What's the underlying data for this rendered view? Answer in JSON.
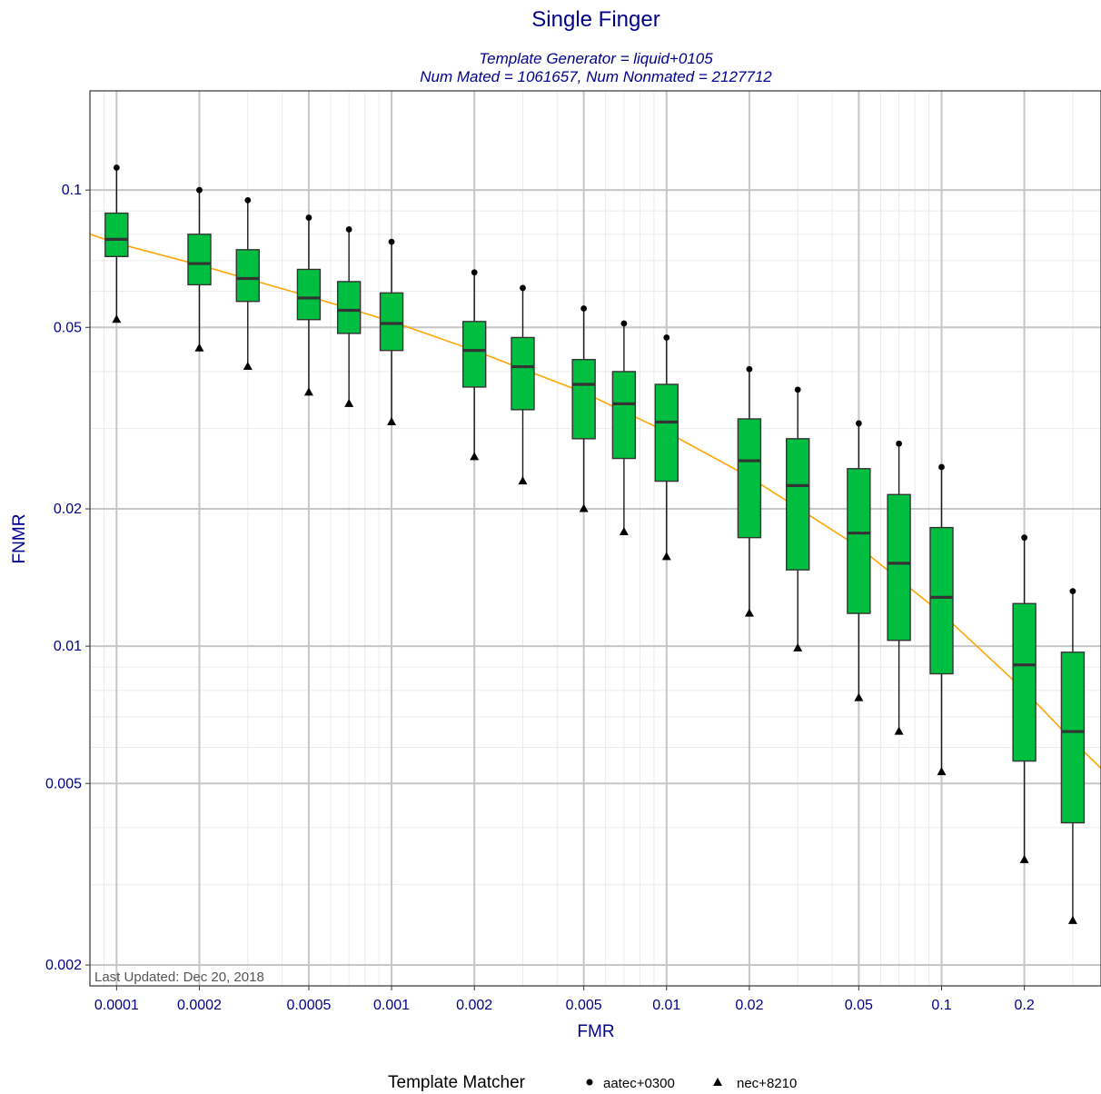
{
  "chart_data": {
    "type": "boxplot",
    "title": "Single Finger",
    "subtitle_lines": [
      "Template Generator = liquid+0105",
      "Num Mated = 1061657, Num Nonmated = 2127712"
    ],
    "xlabel": "FMR",
    "ylabel": "FNMR",
    "x_scale": "log",
    "y_scale": "log",
    "xlim": [
      8e-05,
      0.38
    ],
    "ylim": [
      0.0018,
      0.165
    ],
    "x_tick_labels": [
      "0.0001",
      "0.0002",
      "0.0005",
      "0.001",
      "0.002",
      "0.005",
      "0.01",
      "0.02",
      "0.05",
      "0.1",
      "0.2"
    ],
    "x_ticks": [
      0.0001,
      0.0002,
      0.0005,
      0.001,
      0.002,
      0.005,
      0.01,
      0.02,
      0.05,
      0.1,
      0.2
    ],
    "y_tick_labels": [
      "0.002",
      "0.005",
      "0.01",
      "0.02",
      "0.05",
      "0.1"
    ],
    "y_ticks": [
      0.002,
      0.005,
      0.01,
      0.02,
      0.05,
      0.1
    ],
    "grid": true,
    "annotation": "Last Updated: Dec 20, 2018",
    "box_color": "#00bf40",
    "curve_color": "#ffa500",
    "legend": {
      "title": "Template Matcher",
      "position": "bottom",
      "items": [
        {
          "label": "aatec+0300",
          "shape": "circle"
        },
        {
          "label": "nec+8210",
          "shape": "triangle"
        }
      ]
    },
    "boxes": [
      {
        "fmr": 0.0001,
        "q1": 0.0715,
        "median": 0.078,
        "q3": 0.089,
        "top": 0.112,
        "bottom": 0.052
      },
      {
        "fmr": 0.0002,
        "q1": 0.062,
        "median": 0.069,
        "q3": 0.08,
        "top": 0.1,
        "bottom": 0.045
      },
      {
        "fmr": 0.0003,
        "q1": 0.057,
        "median": 0.064,
        "q3": 0.074,
        "top": 0.095,
        "bottom": 0.041
      },
      {
        "fmr": 0.0005,
        "q1": 0.052,
        "median": 0.058,
        "q3": 0.067,
        "top": 0.087,
        "bottom": 0.036
      },
      {
        "fmr": 0.0007,
        "q1": 0.0485,
        "median": 0.0545,
        "q3": 0.063,
        "top": 0.082,
        "bottom": 0.034
      },
      {
        "fmr": 0.001,
        "q1": 0.0445,
        "median": 0.051,
        "q3": 0.0595,
        "top": 0.077,
        "bottom": 0.031
      },
      {
        "fmr": 0.002,
        "q1": 0.037,
        "median": 0.0445,
        "q3": 0.0515,
        "top": 0.066,
        "bottom": 0.026
      },
      {
        "fmr": 0.003,
        "q1": 0.033,
        "median": 0.041,
        "q3": 0.0475,
        "top": 0.061,
        "bottom": 0.023
      },
      {
        "fmr": 0.005,
        "q1": 0.0285,
        "median": 0.0375,
        "q3": 0.0425,
        "top": 0.055,
        "bottom": 0.02
      },
      {
        "fmr": 0.007,
        "q1": 0.0258,
        "median": 0.034,
        "q3": 0.04,
        "top": 0.051,
        "bottom": 0.0178
      },
      {
        "fmr": 0.01,
        "q1": 0.023,
        "median": 0.031,
        "q3": 0.0375,
        "top": 0.0475,
        "bottom": 0.0157
      },
      {
        "fmr": 0.02,
        "q1": 0.0173,
        "median": 0.0255,
        "q3": 0.0315,
        "top": 0.0405,
        "bottom": 0.0118
      },
      {
        "fmr": 0.03,
        "q1": 0.0147,
        "median": 0.0225,
        "q3": 0.0285,
        "top": 0.0365,
        "bottom": 0.0099
      },
      {
        "fmr": 0.05,
        "q1": 0.0118,
        "median": 0.0177,
        "q3": 0.0245,
        "top": 0.0308,
        "bottom": 0.0077
      },
      {
        "fmr": 0.07,
        "q1": 0.0103,
        "median": 0.0152,
        "q3": 0.0215,
        "top": 0.0278,
        "bottom": 0.0065
      },
      {
        "fmr": 0.1,
        "q1": 0.0087,
        "median": 0.0128,
        "q3": 0.0182,
        "top": 0.0247,
        "bottom": 0.0053
      },
      {
        "fmr": 0.2,
        "q1": 0.0056,
        "median": 0.0091,
        "q3": 0.0124,
        "top": 0.0173,
        "bottom": 0.0034
      },
      {
        "fmr": 0.3,
        "q1": 0.0041,
        "median": 0.0065,
        "q3": 0.0097,
        "top": 0.0132,
        "bottom": 0.0025
      }
    ],
    "curve": {
      "x": [
        8e-05,
        0.0001,
        0.0002,
        0.0005,
        0.001,
        0.002,
        0.005,
        0.01,
        0.02,
        0.05,
        0.1,
        0.2,
        0.3,
        0.38
      ],
      "y": [
        0.08,
        0.0765,
        0.0685,
        0.0585,
        0.0515,
        0.0445,
        0.036,
        0.0295,
        0.0235,
        0.0165,
        0.0118,
        0.008,
        0.0062,
        0.0054
      ]
    }
  }
}
